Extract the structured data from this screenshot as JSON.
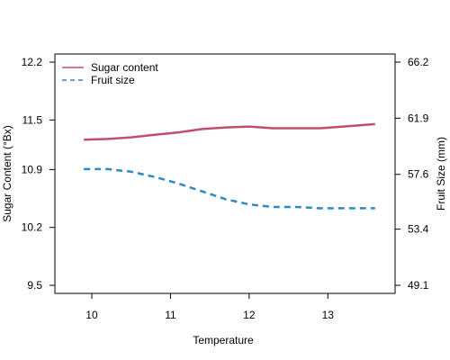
{
  "chart_data": {
    "type": "line",
    "title": "",
    "xlabel": "Temperature",
    "ylabel_left": "Sugar Content (°Bx)",
    "ylabel_right": "Fruit Size (mm)",
    "xlim": [
      9.8,
      13.7
    ],
    "ylim_left": [
      9.5,
      12.2
    ],
    "ylim_right": [
      49.1,
      66.2
    ],
    "x_ticks": [
      10,
      11,
      12,
      13
    ],
    "x_tick_labels": [
      "10",
      "11",
      "12",
      "13"
    ],
    "y_left_ticks": [
      9.5,
      10.2,
      10.9,
      11.5,
      12.2
    ],
    "y_left_tick_labels": [
      "9.5",
      "10.2",
      "10.9",
      "11.5",
      "12.2"
    ],
    "y_right_ticks": [
      49.1,
      53.4,
      57.6,
      61.9,
      66.2
    ],
    "y_right_tick_labels": [
      "49.1",
      "53.4",
      "57.6",
      "61.9",
      "66.2"
    ],
    "grid": false,
    "legend_position": "top-left",
    "series": [
      {
        "name": "Sugar content",
        "axis": "left",
        "color": "#c0506a",
        "style": "solid",
        "x": [
          9.9,
          10.2,
          10.5,
          10.8,
          11.1,
          11.4,
          11.7,
          12.0,
          12.3,
          12.6,
          12.9,
          13.2,
          13.6
        ],
        "values": [
          11.26,
          11.27,
          11.29,
          11.32,
          11.35,
          11.39,
          11.41,
          11.42,
          11.4,
          11.4,
          11.4,
          11.42,
          11.45
        ]
      },
      {
        "name": "Fruit size",
        "axis": "right",
        "color": "#2e8bc0",
        "style": "dashed",
        "x": [
          9.9,
          10.2,
          10.5,
          10.8,
          11.1,
          11.4,
          11.7,
          12.0,
          12.3,
          12.6,
          12.9,
          13.2,
          13.6
        ],
        "values": [
          58.0,
          58.0,
          57.8,
          57.4,
          56.9,
          56.3,
          55.7,
          55.3,
          55.1,
          55.1,
          55.0,
          55.0,
          55.0
        ]
      }
    ]
  }
}
